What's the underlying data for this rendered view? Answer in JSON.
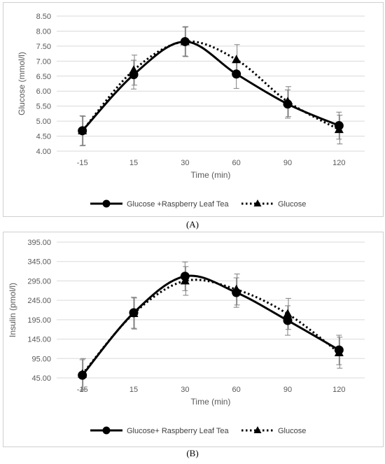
{
  "figure": {
    "caption_a": "(A)",
    "caption_b": "(B)"
  },
  "chart_data": [
    {
      "type": "line",
      "title": "",
      "xlabel": "Time (min)",
      "ylabel": "Glucose (mmol/l)",
      "categories": [
        "-15",
        "15",
        "30",
        "60",
        "90",
        "120"
      ],
      "yticks": [
        "4.00",
        "4.50",
        "5.00",
        "5.50",
        "6.00",
        "6.50",
        "7.00",
        "7.50",
        "8.00",
        "8.50"
      ],
      "ylim": [
        4.0,
        8.5
      ],
      "grid": "horizontal",
      "legend_position": "bottom",
      "series": [
        {
          "name": "Glucose +Raspberry Leaf Tea",
          "values": [
            4.68,
            6.55,
            7.65,
            6.57,
            5.57,
            4.85
          ],
          "errors": [
            0.5,
            0.48,
            0.48,
            0.48,
            0.47,
            0.45
          ],
          "marker": "circle",
          "line_style": "solid",
          "color": "#000000"
        },
        {
          "name": "Glucose",
          "values": [
            4.68,
            6.7,
            7.65,
            7.05,
            5.65,
            4.72
          ],
          "errors": [
            0.48,
            0.5,
            0.5,
            0.5,
            0.5,
            0.48
          ],
          "marker": "triangle",
          "line_style": "dotted",
          "color": "#000000"
        }
      ]
    },
    {
      "type": "line",
      "title": "",
      "xlabel": "Time (min)",
      "ylabel": "Insulin (pmol/l)",
      "categories": [
        "-15",
        "15",
        "30",
        "60",
        "90",
        "120"
      ],
      "yticks": [
        "45.00",
        "95.00",
        "145.00",
        "195.00",
        "245.00",
        "295.00",
        "345.00",
        "395.00"
      ],
      "ylim": [
        45,
        395
      ],
      "grid": "horizontal",
      "legend_position": "bottom",
      "series": [
        {
          "name": "Glucose+ Raspberry Leaf Tea",
          "values": [
            52,
            213,
            307,
            265,
            193,
            117
          ],
          "errors": [
            40,
            40,
            37,
            38,
            38,
            38
          ],
          "marker": "circle",
          "line_style": "solid",
          "color": "#000000"
        },
        {
          "name": "Glucose",
          "values": [
            55,
            211,
            295,
            273,
            210,
            110
          ],
          "errors": [
            40,
            40,
            37,
            40,
            40,
            40
          ],
          "marker": "triangle",
          "line_style": "dotted",
          "color": "#000000"
        }
      ]
    }
  ]
}
